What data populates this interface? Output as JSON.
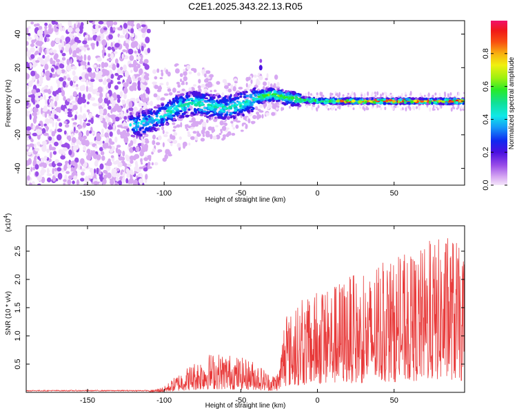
{
  "title": "C2E1.2025.343.22.13.R05",
  "chart_data": [
    {
      "type": "heatmap",
      "name": "spectrogram",
      "xlabel": "Height of straight line (km)",
      "ylabel": "Frequency (Hz)",
      "xlim": [
        -190,
        96
      ],
      "ylim": [
        -50,
        48
      ],
      "xticks": [
        "-150",
        "-100",
        "-50",
        "0",
        "50"
      ],
      "xtick_values": [
        -150,
        -100,
        -50,
        0,
        50
      ],
      "yticks": [
        "-40",
        "-20",
        "0",
        "20",
        "40"
      ],
      "ytick_values": [
        -40,
        -20,
        0,
        20,
        40
      ],
      "colorbar": {
        "label": "Normalized spectral amplitude",
        "range": [
          0,
          1
        ],
        "ticks": [
          "0.0",
          "0.2",
          "0.4",
          "0.6",
          "0.8"
        ],
        "tick_values": [
          0,
          0.2,
          0.4,
          0.6,
          0.8
        ]
      },
      "ridge": {
        "description": "dominant frequency track",
        "x": [
          -118,
          -110,
          -100,
          -90,
          -80,
          -70,
          -60,
          -50,
          -40,
          -30,
          -20,
          -10,
          0,
          25,
          50,
          96
        ],
        "y": [
          -14,
          -12,
          -8,
          -3,
          -1,
          -3,
          -4,
          -2,
          2,
          4,
          2,
          1,
          0,
          0,
          0,
          0
        ]
      }
    },
    {
      "type": "line",
      "name": "snr",
      "xlabel": "Height of straight line (km)",
      "ylabel": "SNR (10 * v/v)",
      "multiplier": "(x10",
      "multiplier_exp": "4",
      "xlim": [
        -190,
        96
      ],
      "ylim": [
        0,
        2.95
      ],
      "xticks": [
        "-150",
        "-100",
        "-50",
        "0",
        "50"
      ],
      "xtick_values": [
        -150,
        -100,
        -50,
        0,
        50
      ],
      "yticks": [
        "0.5",
        "1.0",
        "1.5",
        "2.0",
        "2.5"
      ],
      "ytick_values": [
        0.5,
        1.0,
        1.5,
        2.0,
        2.5
      ],
      "color": "#e83a3a",
      "envelope": {
        "x": [
          -190,
          -110,
          -100,
          -90,
          -80,
          -70,
          -60,
          -50,
          -40,
          -30,
          -25,
          -22,
          -10,
          0,
          10,
          20,
          30,
          40,
          50,
          60,
          70,
          80,
          90,
          96
        ],
        "y": [
          0.03,
          0.03,
          0.1,
          0.35,
          0.55,
          0.7,
          0.7,
          0.62,
          0.55,
          0.3,
          0.4,
          1.3,
          1.6,
          1.75,
          1.9,
          2.1,
          2.0,
          2.2,
          2.3,
          2.4,
          2.6,
          2.75,
          2.8,
          2.2
        ]
      }
    }
  ]
}
